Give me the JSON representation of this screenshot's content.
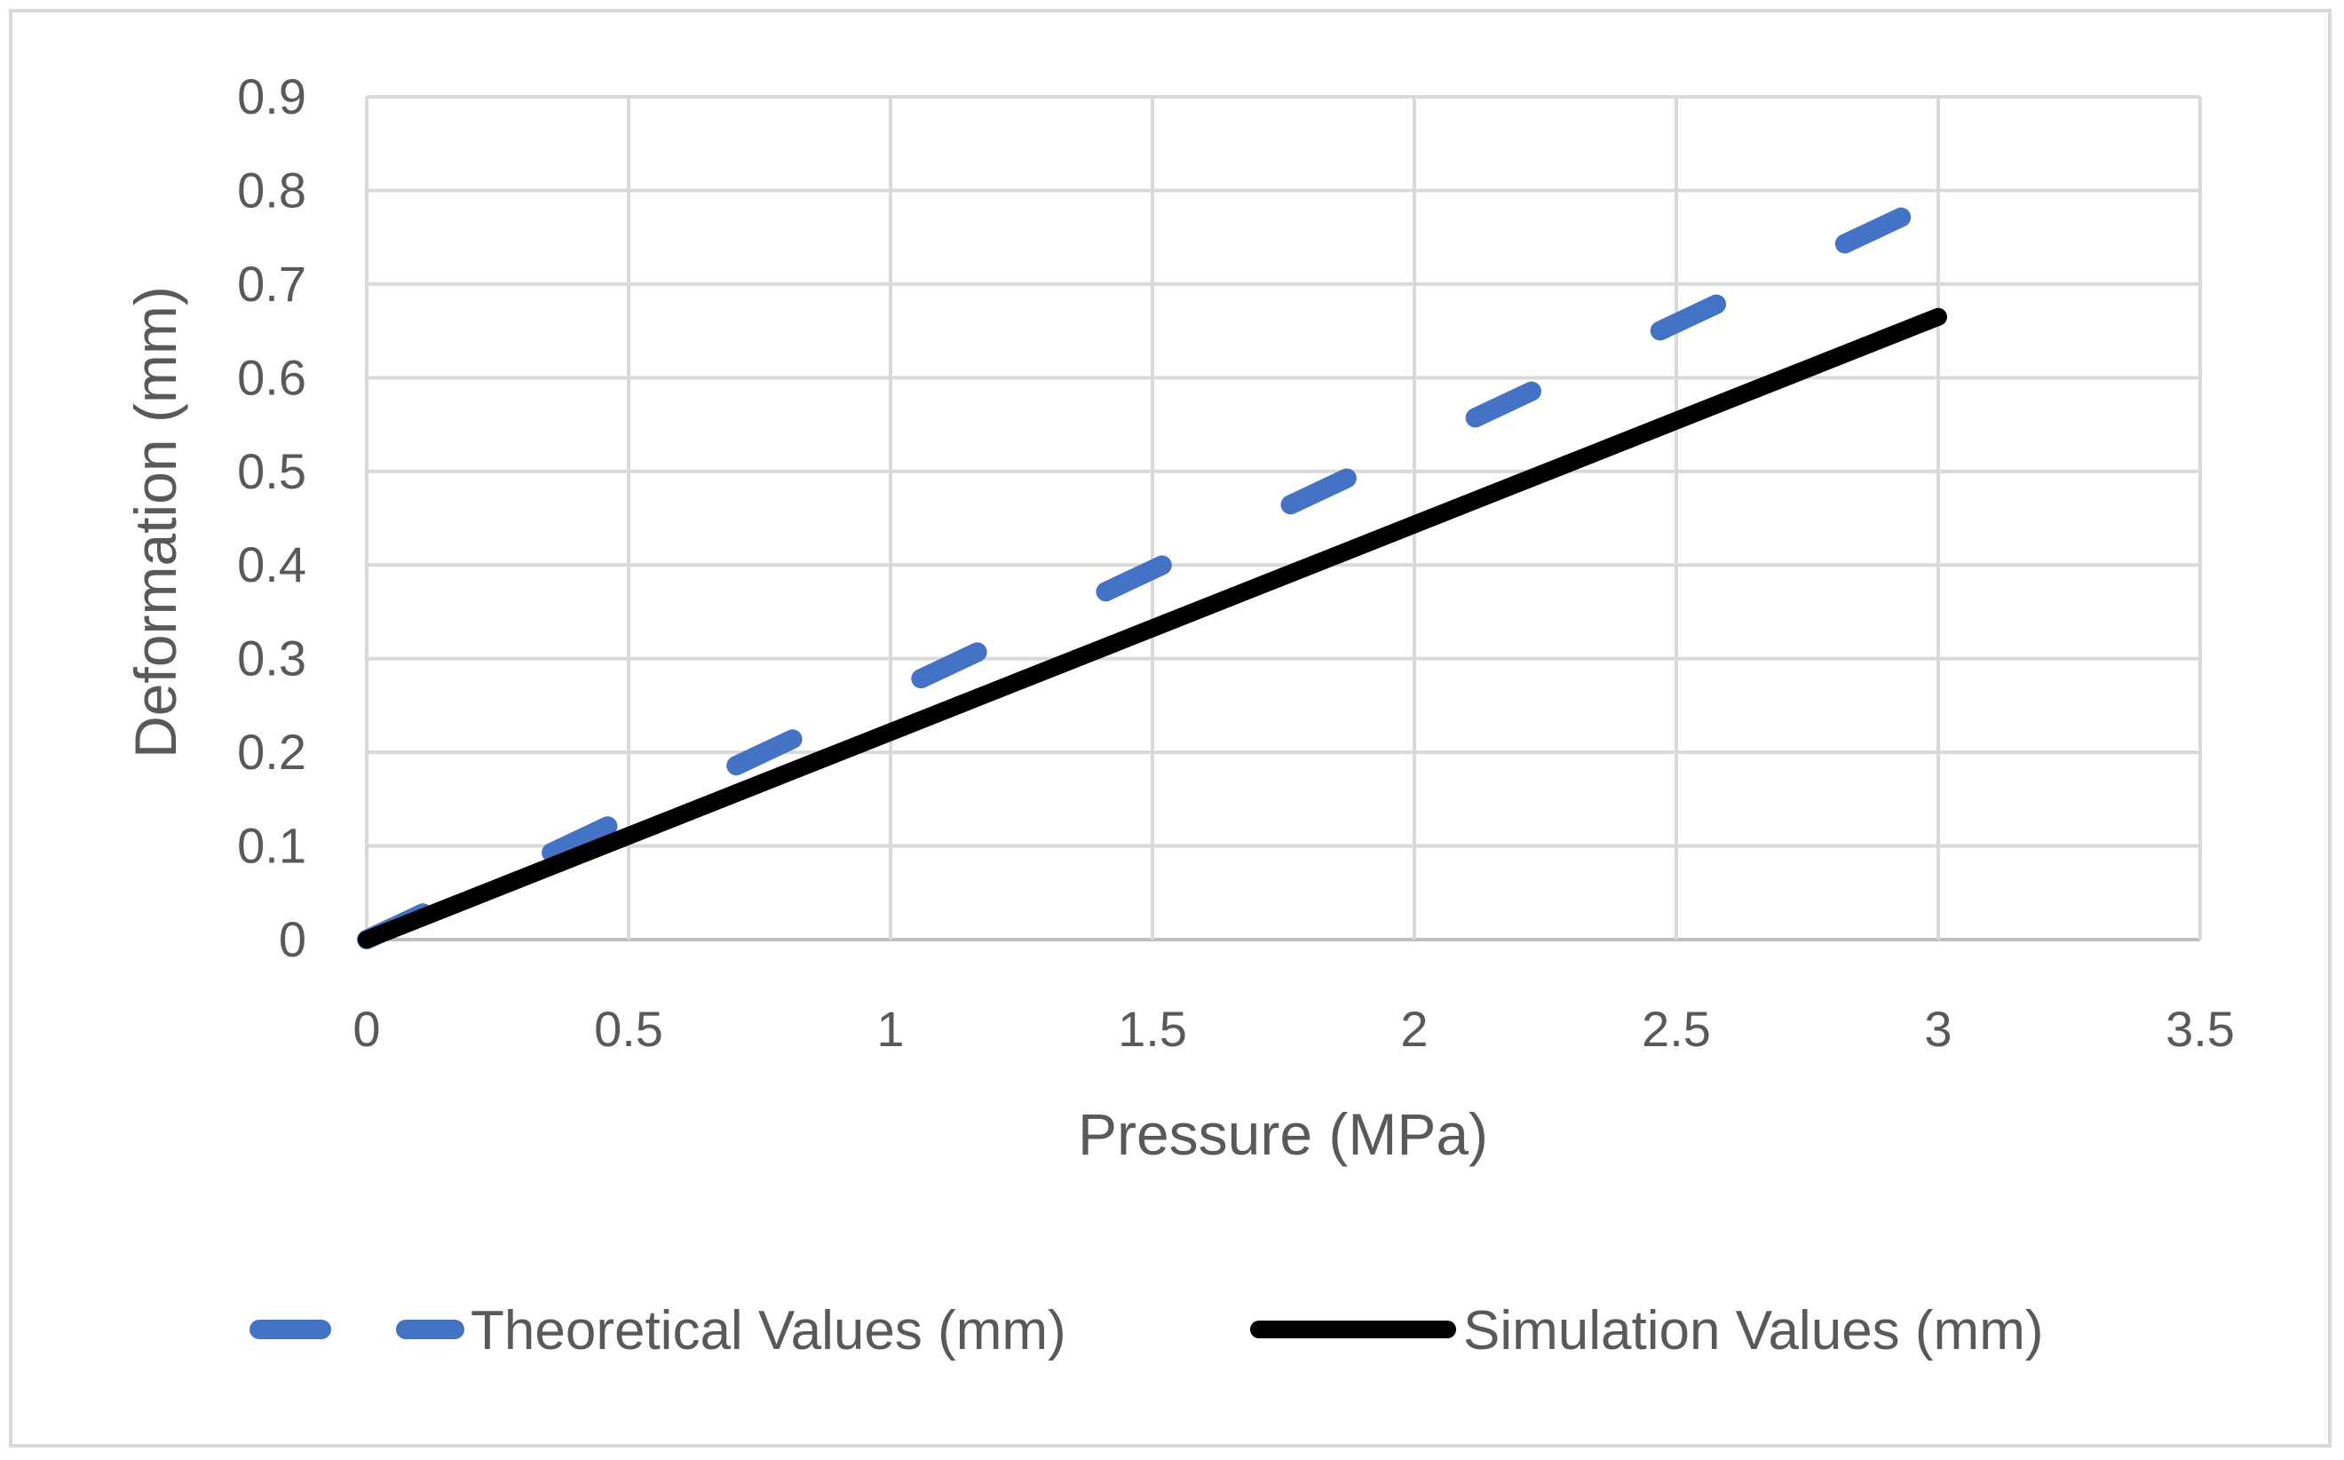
{
  "chart_data": {
    "type": "line",
    "title": "",
    "xlabel": "Pressure (MPa)",
    "ylabel": "Deformation (mm)",
    "xlim": [
      0,
      3.5
    ],
    "ylim": [
      0,
      0.9
    ],
    "xticks": [
      "0",
      "0.5",
      "1",
      "1.5",
      "2",
      "2.5",
      "3",
      "3.5"
    ],
    "yticks": [
      "0",
      "0.1",
      "0.2",
      "0.3",
      "0.4",
      "0.5",
      "0.6",
      "0.7",
      "0.8",
      "0.9"
    ],
    "grid": true,
    "legend_position": "bottom",
    "series": [
      {
        "name": "Theoretical Values (mm)",
        "style": "dashed",
        "color": "#4472c4",
        "x": [
          0,
          3
        ],
        "y": [
          0,
          0.79
        ]
      },
      {
        "name": "Simulation Values (mm)",
        "style": "solid",
        "color": "#000000",
        "x": [
          0,
          3
        ],
        "y": [
          0,
          0.665
        ]
      }
    ]
  }
}
